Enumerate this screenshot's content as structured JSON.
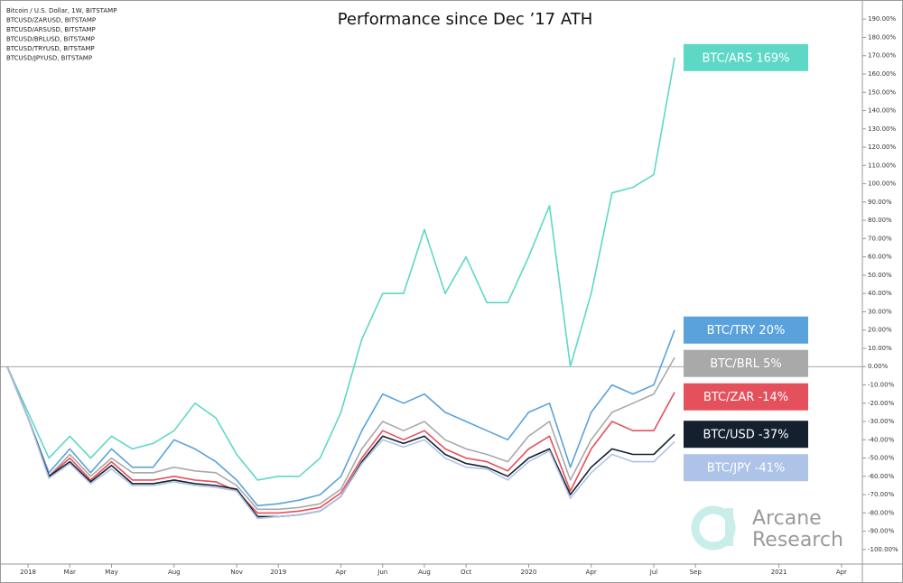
{
  "chart_data": {
    "type": "line",
    "title": "Performance since Dec ’17 ATH",
    "source_labels": [
      "Bitcoin / U.S. Dollar, 1W, BITSTAMP",
      "BTCUSD/ZARUSD, BITSTAMP",
      "BTCUSD/ARSUSD, BITSTAMP",
      "BTCUSD/BRLUSD, BITSTAMP",
      "BTCUSD/TRYUSD, BITSTAMP",
      "BTCUSD/JPYUSD, BITSTAMP"
    ],
    "watermark_lines": [
      "Arcane",
      "Research"
    ],
    "x": [
      "2017-12",
      "2018-01",
      "2018-02",
      "2018-03",
      "2018-04",
      "2018-05",
      "2018-06",
      "2018-07",
      "2018-08",
      "2018-09",
      "2018-10",
      "2018-11",
      "2018-12",
      "2019-01",
      "2019-02",
      "2019-03",
      "2019-04",
      "2019-05",
      "2019-06",
      "2019-07",
      "2019-08",
      "2019-09",
      "2019-10",
      "2019-11",
      "2019-12",
      "2020-01",
      "2020-02",
      "2020-03",
      "2020-04",
      "2020-05",
      "2020-06",
      "2020-07",
      "2020-08"
    ],
    "series": [
      {
        "name": "BTC/ARS 169%",
        "color": "#5dd8c6",
        "values": [
          0,
          -25,
          -50,
          -38,
          -50,
          -38,
          -45,
          -42,
          -35,
          -20,
          -28,
          -48,
          -62,
          -60,
          -60,
          -50,
          -25,
          15,
          40,
          40,
          75,
          40,
          60,
          35,
          35,
          60,
          88,
          0,
          40,
          95,
          98,
          105,
          169
        ]
      },
      {
        "name": "BTC/TRY 20%",
        "color": "#5aa2dc",
        "values": [
          0,
          -28,
          -58,
          -45,
          -58,
          -45,
          -55,
          -55,
          -40,
          -45,
          -52,
          -62,
          -76,
          -75,
          -73,
          -70,
          -60,
          -35,
          -15,
          -20,
          -15,
          -25,
          -30,
          -35,
          -40,
          -25,
          -20,
          -55,
          -25,
          -10,
          -15,
          -10,
          20
        ]
      },
      {
        "name": "BTC/BRL 5%",
        "color": "#a9a9a9",
        "values": [
          0,
          -28,
          -60,
          -48,
          -60,
          -50,
          -58,
          -58,
          -55,
          -57,
          -58,
          -65,
          -78,
          -78,
          -77,
          -75,
          -67,
          -45,
          -30,
          -35,
          -30,
          -40,
          -45,
          -48,
          -52,
          -38,
          -30,
          -62,
          -40,
          -25,
          -20,
          -15,
          5
        ]
      },
      {
        "name": "BTC/ZAR -14%",
        "color": "#e4505c",
        "values": [
          0,
          -28,
          -60,
          -50,
          -62,
          -52,
          -62,
          -62,
          -60,
          -62,
          -63,
          -68,
          -80,
          -80,
          -79,
          -77,
          -69,
          -50,
          -35,
          -40,
          -35,
          -45,
          -50,
          -52,
          -57,
          -45,
          -38,
          -68,
          -45,
          -30,
          -35,
          -35,
          -14
        ]
      },
      {
        "name": "BTC/USD -37%",
        "color": "#15202e",
        "values": [
          0,
          -28,
          -60,
          -52,
          -63,
          -54,
          -64,
          -64,
          -62,
          -64,
          -65,
          -67,
          -82,
          -82,
          -81,
          -79,
          -71,
          -52,
          -38,
          -42,
          -38,
          -48,
          -53,
          -55,
          -60,
          -50,
          -45,
          -70,
          -55,
          -45,
          -48,
          -48,
          -37
        ]
      },
      {
        "name": "BTC/JPY -41%",
        "color": "#aec3e8",
        "values": [
          0,
          -28,
          -61,
          -53,
          -64,
          -56,
          -65,
          -65,
          -63,
          -65,
          -66,
          -68,
          -83,
          -82,
          -81,
          -79,
          -71,
          -53,
          -40,
          -44,
          -40,
          -50,
          -55,
          -56,
          -62,
          -52,
          -46,
          -72,
          -58,
          -48,
          -52,
          -52,
          -41
        ]
      }
    ],
    "xlim": [
      "2017-12",
      "2021-05"
    ],
    "xticks": [
      {
        "value": "2018-01",
        "label": "2018"
      },
      {
        "value": "2018-03",
        "label": "Mar"
      },
      {
        "value": "2018-05",
        "label": "May"
      },
      {
        "value": "2018-08",
        "label": "Aug"
      },
      {
        "value": "2018-11",
        "label": "Nov"
      },
      {
        "value": "2019-01",
        "label": "2019"
      },
      {
        "value": "2019-04",
        "label": "Apr"
      },
      {
        "value": "2019-06",
        "label": "Jun"
      },
      {
        "value": "2019-08",
        "label": "Aug"
      },
      {
        "value": "2019-10",
        "label": "Oct"
      },
      {
        "value": "2020-01",
        "label": "2020"
      },
      {
        "value": "2020-04",
        "label": "Apr"
      },
      {
        "value": "2020-07",
        "label": "Jul"
      },
      {
        "value": "2020-09",
        "label": "Sep"
      },
      {
        "value": "2021-01",
        "label": "2021"
      },
      {
        "value": "2021-04",
        "label": "Apr"
      }
    ],
    "ylim": [
      -104,
      198
    ],
    "yticks": [
      {
        "value": 190,
        "label": "190.00%"
      },
      {
        "value": 180,
        "label": "180.00%"
      },
      {
        "value": 170,
        "label": "170.00%"
      },
      {
        "value": 160,
        "label": "160.00%"
      },
      {
        "value": 150,
        "label": "150.00%"
      },
      {
        "value": 140,
        "label": "140.00%"
      },
      {
        "value": 130,
        "label": "130.00%"
      },
      {
        "value": 120,
        "label": "120.00%"
      },
      {
        "value": 110,
        "label": "110.00%"
      },
      {
        "value": 100,
        "label": "100.00%"
      },
      {
        "value": 90,
        "label": "90.00%"
      },
      {
        "value": 80,
        "label": "80.00%"
      },
      {
        "value": 70,
        "label": "70.00%"
      },
      {
        "value": 60,
        "label": "60.00%"
      },
      {
        "value": 50,
        "label": "50.00%"
      },
      {
        "value": 40,
        "label": "40.00%"
      },
      {
        "value": 30,
        "label": "30.00%"
      },
      {
        "value": 20,
        "label": "20.00%"
      },
      {
        "value": 10,
        "label": "10.00%"
      },
      {
        "value": 0,
        "label": "0.00%"
      },
      {
        "value": -10,
        "label": "-10.00%"
      },
      {
        "value": -20,
        "label": "-20.00%"
      },
      {
        "value": -30,
        "label": "-30.00%"
      },
      {
        "value": -40,
        "label": "-40.00%"
      },
      {
        "value": -50,
        "label": "-50.00%"
      },
      {
        "value": -60,
        "label": "-60.00%"
      },
      {
        "value": -70,
        "label": "-70.00%"
      },
      {
        "value": -80,
        "label": "-80.00%"
      },
      {
        "value": -90,
        "label": "-90.00%"
      },
      {
        "value": -100,
        "label": "-100.00%"
      }
    ],
    "grid": false
  }
}
